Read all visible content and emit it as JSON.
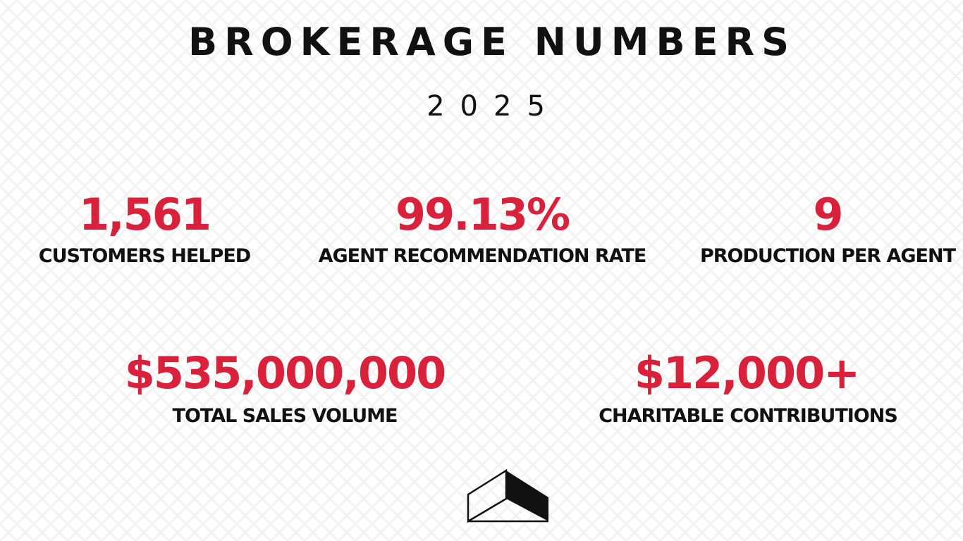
{
  "header": {
    "title": "BROKERAGE NUMBERS",
    "subtitle": "2025"
  },
  "stats": [
    {
      "value": "1,561",
      "label": "CUSTOMERS HELPED"
    },
    {
      "value": "99.13%",
      "label": "AGENT RECOMMENDATION RATE"
    },
    {
      "value": "9",
      "label": "PRODUCTION PER AGENT"
    },
    {
      "value": "$535,000,000",
      "label": "TOTAL SALES VOLUME"
    },
    {
      "value": "$12,000+",
      "label": "CHARITABLE CONTRIBUTIONS"
    }
  ]
}
